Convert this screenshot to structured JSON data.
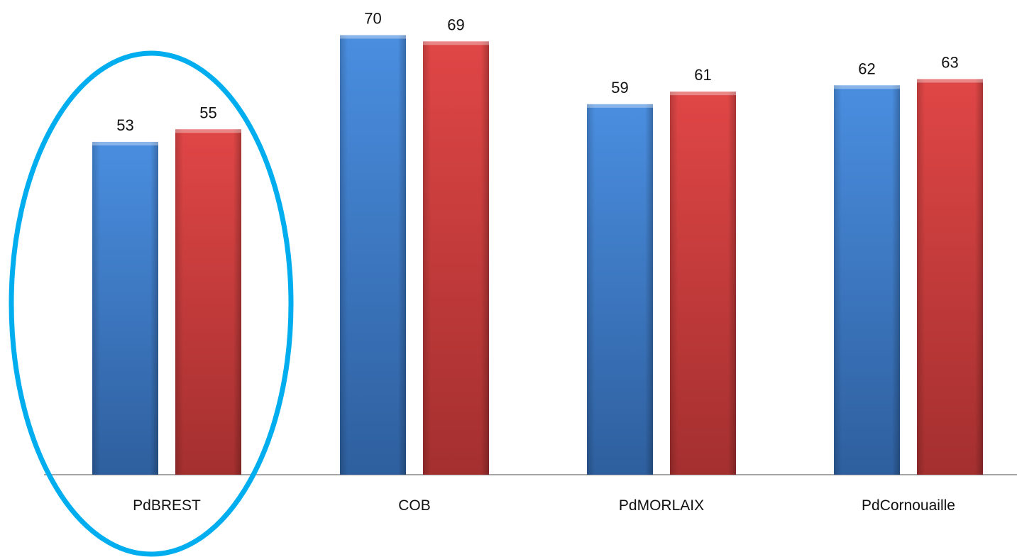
{
  "chart_data": {
    "type": "bar",
    "categories": [
      "PdBREST",
      "COB",
      "PdMORLAIX",
      "PdCornouaille"
    ],
    "series": [
      {
        "values": [
          53,
          70,
          59,
          62
        ],
        "color": "#3f7fd4"
      },
      {
        "values": [
          55,
          69,
          61,
          63
        ],
        "color": "#d63f3f"
      }
    ],
    "title": "",
    "xlabel": "",
    "ylabel": "",
    "ylim": [
      0,
      70
    ],
    "grid": false,
    "legend": "none",
    "data_labels": true,
    "annotations": [
      {
        "type": "ellipse",
        "target_category": "PdBREST",
        "color": "#00aeef"
      }
    ]
  }
}
